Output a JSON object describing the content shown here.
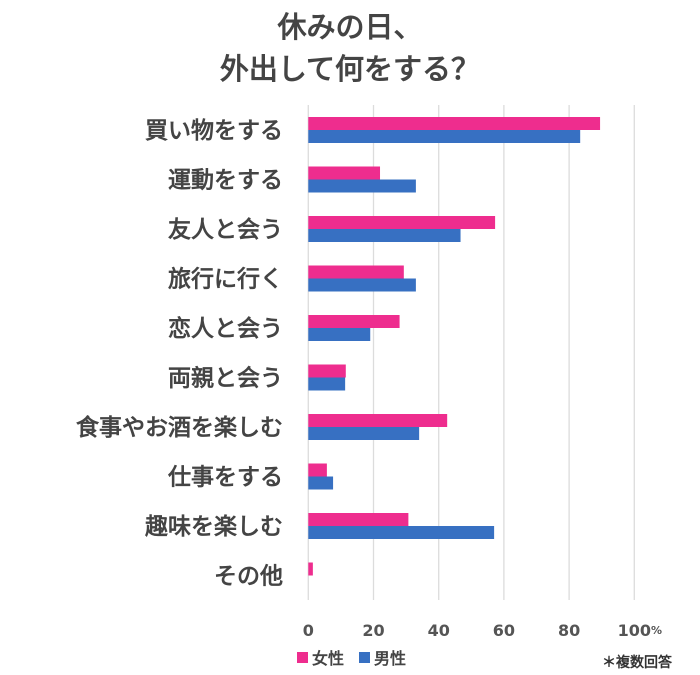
{
  "chart_data": {
    "type": "bar",
    "orientation": "horizontal",
    "title_lines": [
      "休みの日、",
      "外出して何をする？"
    ],
    "categories": [
      "買い物をする",
      "運動をする",
      "友人と会う",
      "旅行に行く",
      "恋人と会う",
      "両親と会う",
      "食事やお酒を楽しむ",
      "仕事をする",
      "趣味を楽しむ",
      "その他"
    ],
    "series": [
      {
        "name": "女性",
        "color": "#ee2d8e",
        "values": [
          89.5,
          22,
          57.3,
          29.3,
          28,
          11.5,
          42.6,
          5.7,
          30.7,
          1.4
        ]
      },
      {
        "name": "男性",
        "color": "#3770c2",
        "values": [
          83.4,
          33,
          46.7,
          33,
          19,
          11.3,
          34,
          7.6,
          57,
          0
        ]
      }
    ],
    "xlim": [
      0,
      100
    ],
    "xticks": [
      "0",
      "20",
      "40",
      "60",
      "80",
      "100"
    ],
    "x_unit": "%",
    "grid": "vertical",
    "legend_position": "bottom-left",
    "note": "＊複数回答"
  }
}
